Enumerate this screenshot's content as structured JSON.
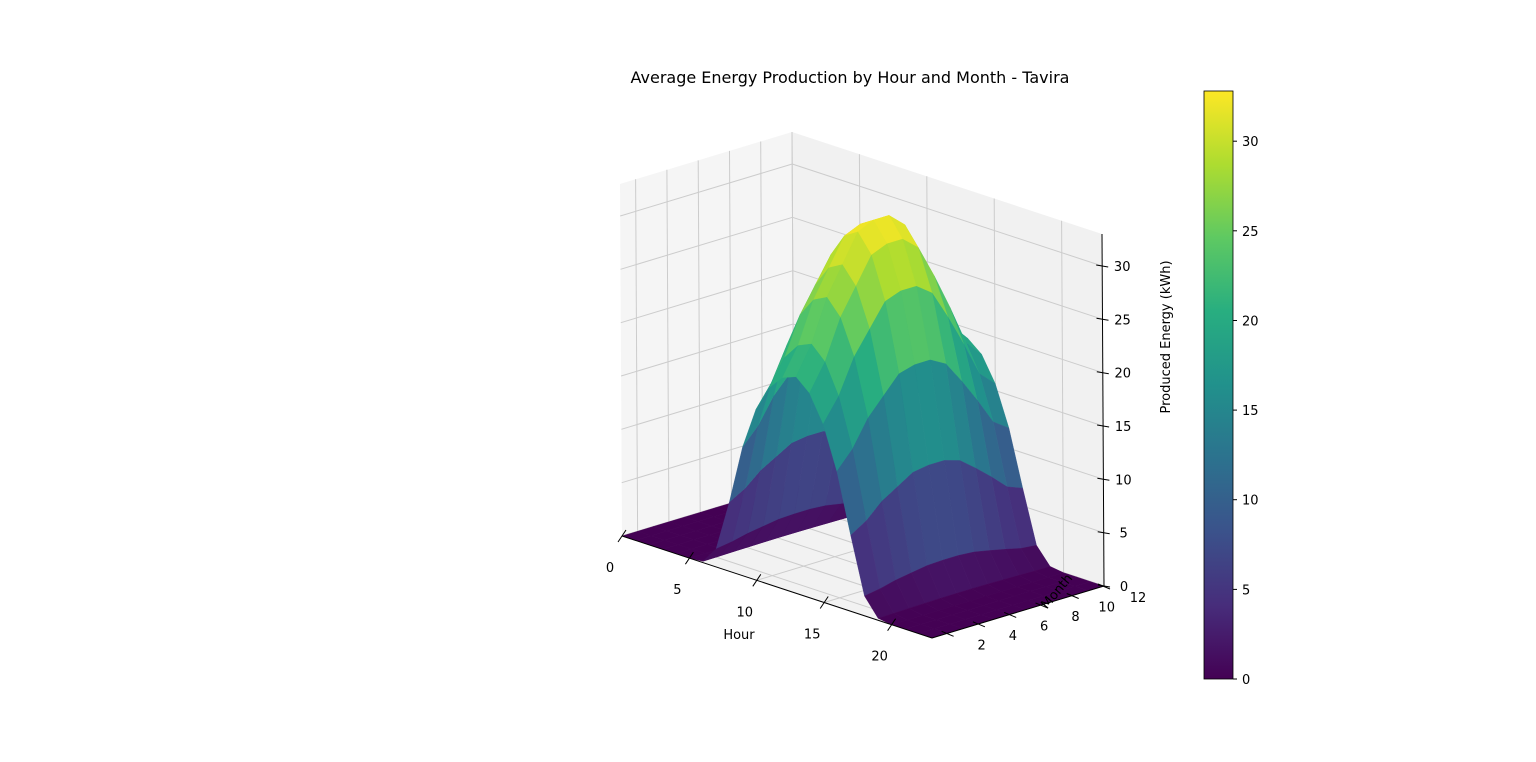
{
  "chart_data": {
    "type": "surface3d",
    "title": "Average Energy Production by Hour and Month - Tavira",
    "xlabel": "Hour",
    "ylabel": "Month",
    "zlabel": "Produced Energy (kWh)",
    "xlim": [
      0,
      23
    ],
    "ylim": [
      1,
      12
    ],
    "zlim": [
      0,
      33
    ],
    "x_ticks": [
      0,
      5,
      10,
      15,
      20
    ],
    "y_ticks": [
      2,
      4,
      6,
      8,
      10,
      12
    ],
    "z_ticks": [
      0,
      5,
      10,
      15,
      20,
      25,
      30
    ],
    "colorbar": {
      "colormap": "viridis",
      "range": [
        0,
        32.8
      ],
      "ticks": [
        0,
        5,
        10,
        15,
        20,
        25,
        30
      ]
    },
    "hours": [
      0,
      1,
      2,
      3,
      4,
      5,
      6,
      7,
      8,
      9,
      10,
      11,
      12,
      13,
      14,
      15,
      16,
      17,
      18,
      19,
      20,
      21,
      22,
      23
    ],
    "months": [
      1,
      2,
      3,
      4,
      5,
      6,
      7,
      8,
      9,
      10,
      11,
      12
    ],
    "z_month_scale": [
      0.62,
      0.7,
      0.82,
      0.9,
      0.98,
      1.0,
      1.0,
      0.96,
      0.86,
      0.75,
      0.63,
      0.58
    ],
    "z_hour_profile_kwh": [
      0,
      0,
      0,
      0,
      0,
      0,
      0.2,
      2.8,
      10.5,
      19.5,
      25.8,
      29.8,
      32.0,
      32.8,
      31.0,
      27.0,
      20.5,
      11.5,
      3.0,
      0.3,
      0,
      0,
      0,
      0
    ]
  },
  "colors": {
    "pane_left": "#f5f5f5",
    "pane_back": "#f1f1f1",
    "pane_floor": "#f2f2f2",
    "grid": "#cccccc",
    "axis_line": "#000000"
  }
}
